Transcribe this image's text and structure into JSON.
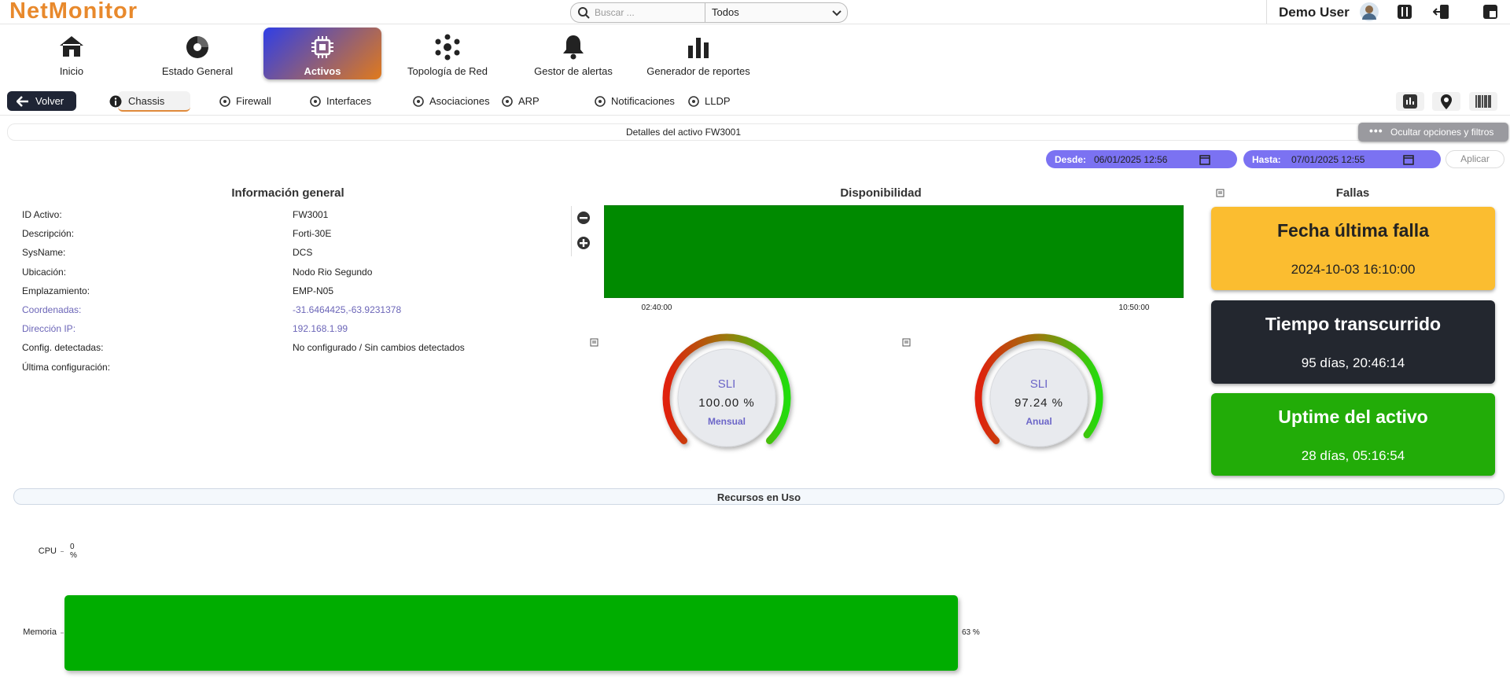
{
  "header": {
    "logo": "NetMonitor",
    "search_placeholder": "Buscar ...",
    "filter": "Todos",
    "user": "Demo User"
  },
  "nav": [
    {
      "label": "Inicio"
    },
    {
      "label": "Estado General"
    },
    {
      "label": "Activos"
    },
    {
      "label": "Topología de Red"
    },
    {
      "label": "Gestor de alertas"
    },
    {
      "label": "Generador de reportes"
    }
  ],
  "back": "Volver",
  "tabs": [
    "Chassis",
    "Firewall",
    "Interfaces",
    "Asociaciones",
    "ARP",
    "Notificaciones",
    "LLDP"
  ],
  "detail_title": "Detalles del activo FW3001",
  "toggle_filters": "Ocultar opciones y filtros",
  "date_filter": {
    "from_label": "Desde:",
    "from_value": "06/01/2025 12:56",
    "to_label": "Hasta:",
    "to_value": "07/01/2025 12:55",
    "apply": "Aplicar"
  },
  "info": {
    "title": "Información general",
    "rows": [
      [
        "ID Activo:",
        "FW3001"
      ],
      [
        "Descripción:",
        "Forti-30E"
      ],
      [
        "SysName:",
        "DCS"
      ],
      [
        "Ubicación:",
        "Nodo Rio Segundo"
      ],
      [
        "Emplazamiento:",
        "EMP-N05"
      ],
      [
        "Coordenadas:",
        "-31.6464425,-63.9231378"
      ],
      [
        "Dirección IP:",
        "192.168.1.99"
      ],
      [
        "Config. detectadas:",
        "No configurado / Sin cambios detectados"
      ],
      [
        "Última configuración:",
        ""
      ]
    ]
  },
  "availability": {
    "title": "Disponibilidad",
    "x_labels": [
      "02:40:00",
      "10:50:00"
    ]
  },
  "gauges": [
    {
      "label": "SLI",
      "value": 100,
      "value_label": "100.00 %",
      "period": "Mensual"
    },
    {
      "label": "SLI",
      "value": 97.24,
      "value_label": "97.24 %",
      "period": "Anual"
    }
  ],
  "failures": {
    "title": "Fallas",
    "cards": [
      {
        "title": "Fecha última falla",
        "value": "2024-10-03 16:10:00"
      },
      {
        "title": "Tiempo transcurrido",
        "value": "95 días, 20:46:14"
      },
      {
        "title": "Uptime del activo",
        "value": "28 días, 05:16:54"
      }
    ]
  },
  "resources": {
    "title": "Recursos en Uso",
    "chart_data": {
      "type": "bar",
      "orientation": "horizontal",
      "categories": [
        "CPU",
        "Memoria"
      ],
      "values": [
        0,
        63
      ],
      "value_labels": [
        "0 %",
        "63 %"
      ],
      "color": "#04ad04",
      "xlim": [
        0,
        100
      ]
    }
  }
}
